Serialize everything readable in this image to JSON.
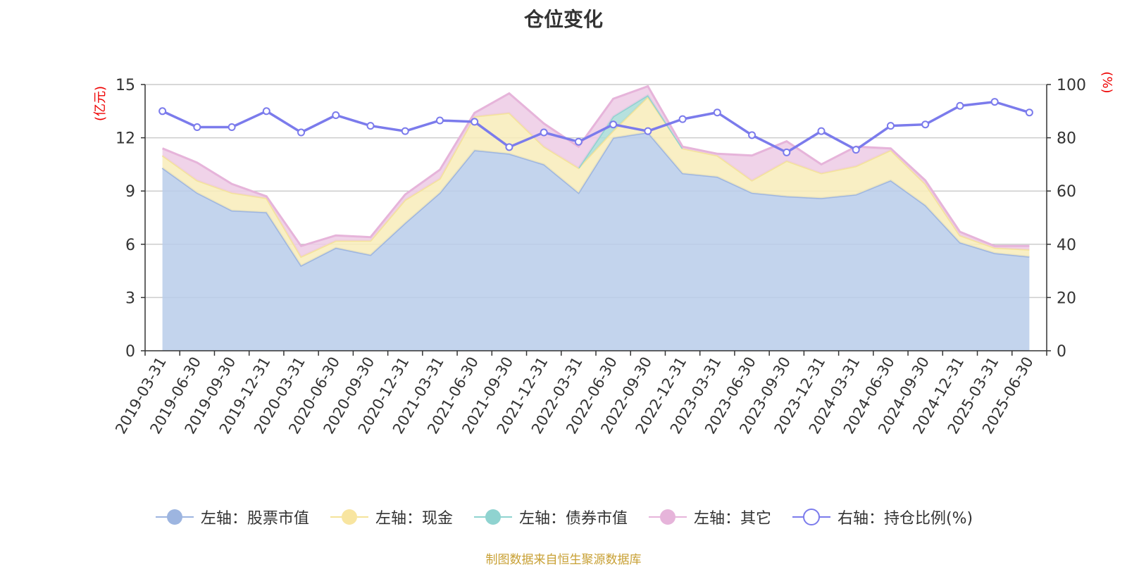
{
  "chart_data": {
    "type": "area",
    "title": "仓位变化",
    "categories": [
      "2019-03-31",
      "2019-06-30",
      "2019-09-30",
      "2019-12-31",
      "2020-03-31",
      "2020-06-30",
      "2020-09-30",
      "2020-12-31",
      "2021-03-31",
      "2021-06-30",
      "2021-09-30",
      "2021-12-31",
      "2022-03-31",
      "2022-06-30",
      "2022-09-30",
      "2022-12-31",
      "2023-03-31",
      "2023-06-30",
      "2023-09-30",
      "2023-12-31",
      "2024-03-31",
      "2024-06-30",
      "2024-09-30",
      "2024-12-31",
      "2025-03-31",
      "2025-06-30"
    ],
    "left_axis": {
      "unit_label": "(亿元)",
      "ylim": [
        0,
        15
      ],
      "ticks": [
        "0",
        "3",
        "6",
        "9",
        "12",
        "15"
      ]
    },
    "right_axis": {
      "unit_label": "(%)",
      "ylim": [
        0,
        100
      ],
      "ticks": [
        "0",
        "20",
        "40",
        "60",
        "80",
        "100"
      ]
    },
    "grid": true,
    "legend_position": "bottom",
    "series": [
      {
        "name": "左轴：股票市值",
        "axis": "left",
        "stack": true,
        "color": "#9db5e0",
        "fill": "#b8cdea",
        "values": [
          10.3,
          8.9,
          7.9,
          7.8,
          4.8,
          5.8,
          5.4,
          7.2,
          8.9,
          11.3,
          11.1,
          10.5,
          8.9,
          12.0,
          12.3,
          10.0,
          9.8,
          8.9,
          8.7,
          8.6,
          8.8,
          9.6,
          8.2,
          6.1,
          5.5,
          5.3
        ]
      },
      {
        "name": "左轴：现金",
        "axis": "left",
        "stack": true,
        "color": "#f4e39a",
        "fill": "#f8ecba",
        "values": [
          0.7,
          0.7,
          1.0,
          0.8,
          0.5,
          0.4,
          0.8,
          1.3,
          0.8,
          1.9,
          2.3,
          1.0,
          1.4,
          0.4,
          2.0,
          1.4,
          1.2,
          0.7,
          2.0,
          1.4,
          1.6,
          1.7,
          1.2,
          0.4,
          0.3,
          0.4
        ]
      },
      {
        "name": "左轴：债券市值",
        "axis": "left",
        "stack": true,
        "color": "#8fd3d0",
        "fill": "#a9dcd8",
        "values": [
          0,
          0,
          0,
          0,
          0,
          0,
          0,
          0,
          0,
          0,
          0,
          0,
          0,
          0.8,
          0.1,
          0,
          0,
          0,
          0,
          0,
          0,
          0,
          0,
          0,
          0,
          0
        ]
      },
      {
        "name": "左轴：其它",
        "axis": "left",
        "stack": true,
        "color": "#e6b4da",
        "fill": "#edcbe5",
        "values": [
          0.4,
          1.0,
          0.5,
          0.1,
          0.6,
          0.3,
          0.2,
          0.3,
          0.5,
          0.2,
          1.1,
          1.3,
          1.2,
          1.0,
          0.5,
          0.1,
          0.1,
          1.4,
          1.1,
          0.5,
          1.1,
          0.1,
          0.2,
          0.2,
          0.1,
          0.2
        ]
      },
      {
        "name": "右轴：持仓比例(%)",
        "axis": "right",
        "stack": false,
        "color": "#7b7bec",
        "values": [
          90,
          84,
          84,
          90,
          82,
          88.5,
          84.5,
          82.5,
          86.5,
          86,
          76.5,
          82,
          78.5,
          85,
          82.5,
          87,
          89.5,
          81,
          74.5,
          82.5,
          75.5,
          84.5,
          85,
          92,
          93.5,
          89.5
        ]
      }
    ]
  },
  "source_note": "制图数据来自恒生聚源数据库"
}
